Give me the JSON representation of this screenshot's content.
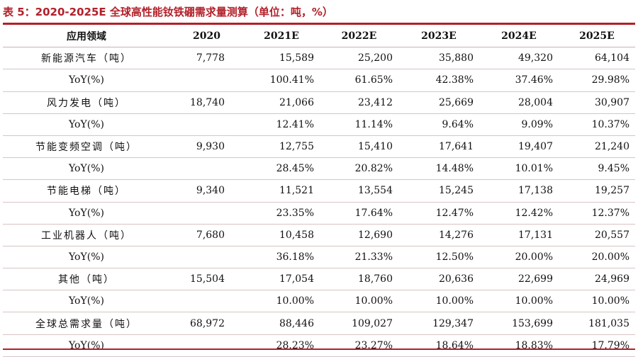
{
  "caption": "表 5：2020-2025E 全球高性能钕铁硼需求量测算（单位：吨，%）",
  "colors": {
    "caption": "#b3202a",
    "rule": "#b3202a",
    "text": "#111111"
  },
  "table": {
    "headers": [
      "应用领域",
      "2020",
      "2021E",
      "2022E",
      "2023E",
      "2024E",
      "2025E"
    ],
    "rows": [
      {
        "label": "新能源汽车（吨）",
        "values": [
          "7,778",
          "15,589",
          "25,200",
          "35,880",
          "49,320",
          "64,104"
        ]
      },
      {
        "label": "YoY(%)",
        "values": [
          "",
          "100.41%",
          "61.65%",
          "42.38%",
          "37.46%",
          "29.98%"
        ]
      },
      {
        "label": "风力发电（吨）",
        "values": [
          "18,740",
          "21,066",
          "23,412",
          "25,669",
          "28,004",
          "30,907"
        ]
      },
      {
        "label": "YoY(%)",
        "values": [
          "",
          "12.41%",
          "11.14%",
          "9.64%",
          "9.09%",
          "10.37%"
        ]
      },
      {
        "label": "节能变频空调（吨）",
        "values": [
          "9,930",
          "12,755",
          "15,410",
          "17,641",
          "19,407",
          "21,240"
        ]
      },
      {
        "label": "YoY(%)",
        "values": [
          "",
          "28.45%",
          "20.82%",
          "14.48%",
          "10.01%",
          "9.45%"
        ]
      },
      {
        "label": "节能电梯（吨）",
        "values": [
          "9,340",
          "11,521",
          "13,554",
          "15,245",
          "17,138",
          "19,257"
        ]
      },
      {
        "label": "YoY(%)",
        "values": [
          "",
          "23.35%",
          "17.64%",
          "12.47%",
          "12.42%",
          "12.37%"
        ]
      },
      {
        "label": "工业机器人（吨）",
        "values": [
          "7,680",
          "10,458",
          "12,690",
          "14,276",
          "17,131",
          "20,557"
        ]
      },
      {
        "label": "YoY(%)",
        "values": [
          "",
          "36.18%",
          "21.33%",
          "12.50%",
          "20.00%",
          "20.00%"
        ]
      },
      {
        "label": "其他（吨）",
        "values": [
          "15,504",
          "17,054",
          "18,760",
          "20,636",
          "22,699",
          "24,969"
        ]
      },
      {
        "label": "YoY(%)",
        "values": [
          "",
          "10.00%",
          "10.00%",
          "10.00%",
          "10.00%",
          "10.00%"
        ]
      },
      {
        "label": "全球总需求量（吨）",
        "values": [
          "68,972",
          "88,446",
          "109,027",
          "129,347",
          "153,699",
          "181,035"
        ]
      },
      {
        "label": "YoY(%)",
        "values": [
          "",
          "28.23%",
          "23.27%",
          "18.64%",
          "18.83%",
          "17.79%"
        ]
      }
    ]
  }
}
